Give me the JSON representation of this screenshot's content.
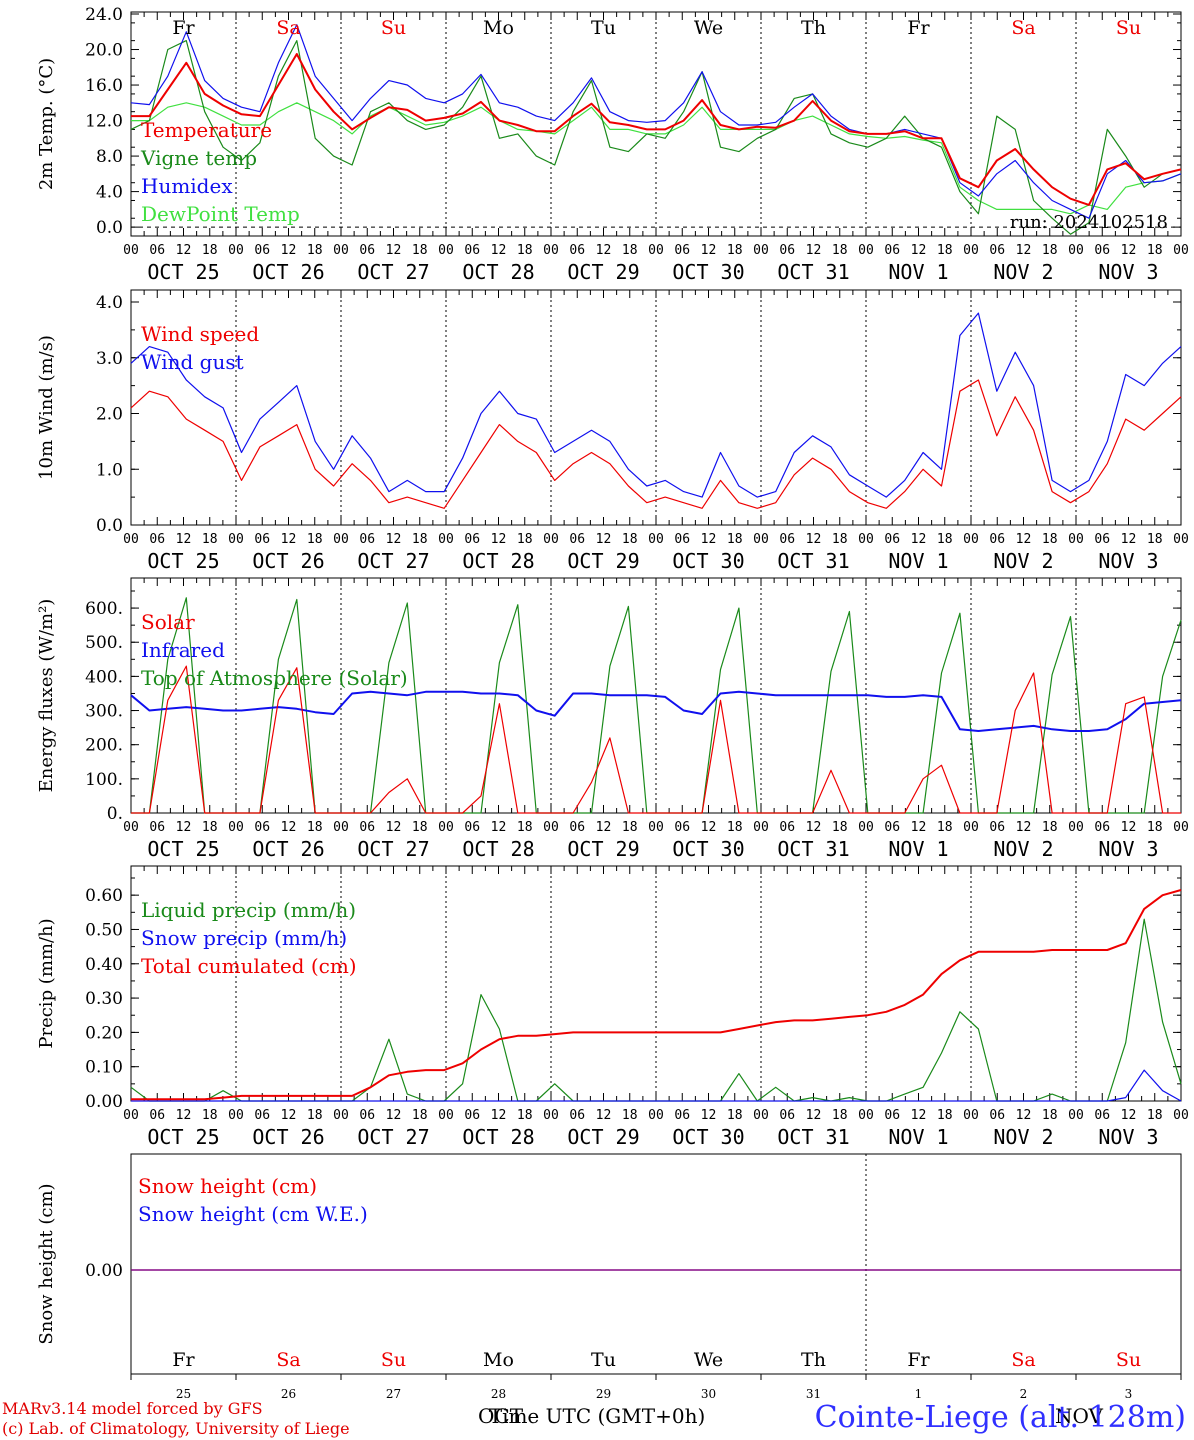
{
  "run_label": "run: 2024102518",
  "days": {
    "weekday": [
      "Fr",
      "Sa",
      "Su",
      "Mo",
      "Tu",
      "We",
      "Th",
      "Fr",
      "Sa",
      "Su"
    ],
    "weekend": [
      false,
      true,
      true,
      false,
      false,
      false,
      false,
      false,
      true,
      true
    ],
    "date": [
      "OCT 25",
      "OCT 26",
      "OCT 27",
      "OCT 28",
      "OCT 29",
      "OCT 30",
      "OCT 31",
      "NOV  1",
      "NOV  2",
      "NOV  3"
    ],
    "daynum": [
      "25",
      "26",
      "27",
      "28",
      "29",
      "30",
      "31",
      "1",
      "2",
      "3"
    ],
    "hour_ticks": [
      "00",
      "06",
      "12",
      "18"
    ]
  },
  "colors": {
    "red": "#ee0000",
    "green": "#1a8a1a",
    "blue": "#1010ee",
    "lightgreen": "#40e040",
    "purple": "#800080"
  },
  "chart_data": [
    {
      "type": "line",
      "ylabel": "2m Temp. (°C)",
      "ylim": [
        -1.0,
        24.0
      ],
      "yticks": [
        "24.0",
        "20.0",
        "16.0",
        "12.0",
        "8.0",
        "4.0",
        "0.0"
      ],
      "x_start": "OCT 25 00 UTC",
      "x_step_hours": 6,
      "series": [
        {
          "name": "Temperature",
          "color": "red",
          "values": [
            12.5,
            12.5,
            15.5,
            18.5,
            15.0,
            13.7,
            12.7,
            12.5,
            16.0,
            19.5,
            15.5,
            13.0,
            11.0,
            12.3,
            13.5,
            13.2,
            12.0,
            12.3,
            12.8,
            14.1,
            12.0,
            11.5,
            10.8,
            10.8,
            12.5,
            13.9,
            11.8,
            11.5,
            11.0,
            11.0,
            12.0,
            14.3,
            11.5,
            11.0,
            11.3,
            11.2,
            12.0,
            14.2,
            12.0,
            10.8,
            10.5,
            10.5,
            10.8,
            10.0,
            10.0,
            5.5,
            4.5,
            7.5,
            8.8,
            6.5,
            4.5,
            3.2,
            2.5,
            6.5,
            7.2,
            5.4,
            6.0,
            6.5
          ]
        },
        {
          "name": "Vigne temp",
          "color": "green",
          "values": [
            11.0,
            12.0,
            20.0,
            21.0,
            13.0,
            9.0,
            7.5,
            9.5,
            17.0,
            21.0,
            10.0,
            8.0,
            7.0,
            13.0,
            14.0,
            12.0,
            11.0,
            11.5,
            13.5,
            17.0,
            10.0,
            10.5,
            8.0,
            7.0,
            13.0,
            16.5,
            9.0,
            8.5,
            10.5,
            10.0,
            13.0,
            17.5,
            9.0,
            8.5,
            10.0,
            11.0,
            14.5,
            15.0,
            10.5,
            9.5,
            9.0,
            10.0,
            12.5,
            10.0,
            9.0,
            4.0,
            1.5,
            12.5,
            11.0,
            3.0,
            1.0,
            -0.8,
            0.5,
            11.0,
            8.0,
            4.5,
            6.0,
            6.5
          ]
        },
        {
          "name": "Humidex",
          "color": "blue",
          "values": [
            14.0,
            13.8,
            17.0,
            22.0,
            16.5,
            14.5,
            13.5,
            13.0,
            18.5,
            22.8,
            17.0,
            14.5,
            12.0,
            14.5,
            16.5,
            16.0,
            14.5,
            14.0,
            15.0,
            17.2,
            14.0,
            13.5,
            12.5,
            12.0,
            14.0,
            16.8,
            13.0,
            12.0,
            11.8,
            12.0,
            14.0,
            17.5,
            13.0,
            11.5,
            11.5,
            11.8,
            13.5,
            15.0,
            12.5,
            11.0,
            10.5,
            10.5,
            11.0,
            10.5,
            10.0,
            5.0,
            3.5,
            6.0,
            7.5,
            5.0,
            3.0,
            2.0,
            1.0,
            6.0,
            7.5,
            5.0,
            5.2,
            6.0
          ]
        },
        {
          "name": "DewPoint Temp",
          "color": "lightgreen",
          "values": [
            12.0,
            12.0,
            13.5,
            14.0,
            13.5,
            12.5,
            11.5,
            11.5,
            13.0,
            14.0,
            13.0,
            12.0,
            10.5,
            12.5,
            13.5,
            12.5,
            11.5,
            11.8,
            12.5,
            13.5,
            12.0,
            11.0,
            10.8,
            10.5,
            12.0,
            13.5,
            11.0,
            11.0,
            10.5,
            10.5,
            11.5,
            13.5,
            11.0,
            11.0,
            11.0,
            11.0,
            12.0,
            12.5,
            11.5,
            10.5,
            10.2,
            10.0,
            10.2,
            9.8,
            9.5,
            4.5,
            3.0,
            2.0,
            2.0,
            2.0,
            2.0,
            1.5,
            2.5,
            2.0,
            4.5,
            5.0,
            5.2,
            6.0
          ]
        }
      ]
    },
    {
      "type": "line",
      "ylabel": "10m Wind (m/s)",
      "ylim": [
        0.0,
        4.0
      ],
      "yticks": [
        "4.0",
        "3.0",
        "2.0",
        "1.0",
        "0.0"
      ],
      "x_start": "OCT 25 00 UTC",
      "x_step_hours": 6,
      "series": [
        {
          "name": "Wind speed",
          "color": "red",
          "values": [
            2.1,
            2.4,
            2.3,
            1.9,
            1.7,
            1.5,
            0.8,
            1.4,
            1.6,
            1.8,
            1.0,
            0.7,
            1.1,
            0.8,
            0.4,
            0.5,
            0.4,
            0.3,
            0.8,
            1.3,
            1.8,
            1.5,
            1.3,
            0.8,
            1.1,
            1.3,
            1.1,
            0.7,
            0.4,
            0.5,
            0.4,
            0.3,
            0.8,
            0.4,
            0.3,
            0.4,
            0.9,
            1.2,
            1.0,
            0.6,
            0.4,
            0.3,
            0.6,
            1.0,
            0.7,
            2.4,
            2.6,
            1.6,
            2.3,
            1.7,
            0.6,
            0.4,
            0.6,
            1.1,
            1.9,
            1.7,
            2.0,
            2.3
          ]
        },
        {
          "name": "Wind gust",
          "color": "blue",
          "values": [
            2.9,
            3.2,
            3.1,
            2.6,
            2.3,
            2.1,
            1.3,
            1.9,
            2.2,
            2.5,
            1.5,
            1.0,
            1.6,
            1.2,
            0.6,
            0.8,
            0.6,
            0.6,
            1.2,
            2.0,
            2.4,
            2.0,
            1.9,
            1.3,
            1.5,
            1.7,
            1.5,
            1.0,
            0.7,
            0.8,
            0.6,
            0.5,
            1.3,
            0.7,
            0.5,
            0.6,
            1.3,
            1.6,
            1.4,
            0.9,
            0.7,
            0.5,
            0.8,
            1.3,
            1.0,
            3.4,
            3.8,
            2.4,
            3.1,
            2.5,
            0.8,
            0.6,
            0.8,
            1.5,
            2.7,
            2.5,
            2.9,
            3.2
          ]
        }
      ]
    },
    {
      "type": "line",
      "ylabel": "Energy fluxes (W/m²)",
      "ylim": [
        0,
        650
      ],
      "yticks": [
        "600.",
        "500.",
        "400.",
        "300.",
        "200.",
        "100.",
        "0."
      ],
      "x_start": "OCT 25 00 UTC",
      "x_step_hours": 6,
      "series": [
        {
          "name": "Solar",
          "color": "red",
          "values": [
            0,
            0,
            330,
            430,
            0,
            0,
            0,
            0,
            330,
            425,
            0,
            0,
            0,
            0,
            60,
            100,
            0,
            0,
            0,
            50,
            320,
            0,
            0,
            0,
            0,
            90,
            220,
            0,
            0,
            0,
            0,
            0,
            330,
            0,
            0,
            0,
            0,
            0,
            125,
            0,
            0,
            0,
            0,
            100,
            140,
            0,
            0,
            0,
            300,
            410,
            0,
            0,
            0,
            0,
            320,
            340,
            0,
            0
          ]
        },
        {
          "name": "Infrared",
          "color": "blue",
          "values": [
            345,
            300,
            305,
            310,
            305,
            300,
            300,
            305,
            310,
            305,
            295,
            290,
            350,
            355,
            350,
            345,
            355,
            355,
            355,
            350,
            350,
            345,
            300,
            285,
            350,
            350,
            345,
            345,
            345,
            340,
            300,
            290,
            350,
            355,
            350,
            345,
            345,
            345,
            345,
            345,
            345,
            340,
            340,
            345,
            340,
            245,
            240,
            245,
            250,
            255,
            245,
            240,
            240,
            245,
            275,
            320,
            325,
            330
          ]
        },
        {
          "name": "Top of Atmosphere (Solar)",
          "color": "green",
          "values": [
            0,
            0,
            450,
            630,
            0,
            0,
            0,
            0,
            450,
            625,
            0,
            0,
            0,
            0,
            440,
            615,
            0,
            0,
            0,
            0,
            440,
            610,
            0,
            0,
            0,
            0,
            430,
            605,
            0,
            0,
            0,
            0,
            420,
            600,
            0,
            0,
            0,
            0,
            415,
            590,
            0,
            0,
            0,
            0,
            410,
            585,
            0,
            0,
            0,
            0,
            405,
            575,
            0,
            0,
            0,
            0,
            400,
            565
          ]
        }
      ]
    },
    {
      "type": "line",
      "ylabel": "Precip (mm/h)",
      "ylim": [
        0.0,
        0.65
      ],
      "yticks": [
        "0.60",
        "0.50",
        "0.40",
        "0.30",
        "0.20",
        "0.10",
        "0.00"
      ],
      "x_start": "OCT 25 00 UTC",
      "x_step_hours": 6,
      "series": [
        {
          "name": "Liquid precip (mm/h)",
          "color": "green",
          "values": [
            0.04,
            0.0,
            0.0,
            0.0,
            0.0,
            0.03,
            0.0,
            0.0,
            0.0,
            0.0,
            0.0,
            0.0,
            0.0,
            0.04,
            0.18,
            0.02,
            0.0,
            0.0,
            0.05,
            0.31,
            0.21,
            0.0,
            0.0,
            0.05,
            0.0,
            0.0,
            0.0,
            0.0,
            0.0,
            0.0,
            0.0,
            0.0,
            0.0,
            0.08,
            0.0,
            0.04,
            0.0,
            0.01,
            0.0,
            0.01,
            0.0,
            0.0,
            0.02,
            0.04,
            0.14,
            0.26,
            0.21,
            0.0,
            0.0,
            0.0,
            0.02,
            0.0,
            0.0,
            0.0,
            0.17,
            0.53,
            0.23,
            0.05
          ]
        },
        {
          "name": "Snow precip (mm/h)",
          "color": "blue",
          "values": [
            0,
            0,
            0,
            0,
            0,
            0,
            0,
            0,
            0,
            0,
            0,
            0,
            0,
            0,
            0,
            0,
            0,
            0,
            0,
            0,
            0,
            0,
            0,
            0,
            0,
            0,
            0,
            0,
            0,
            0,
            0,
            0,
            0,
            0,
            0,
            0,
            0,
            0,
            0,
            0,
            0,
            0,
            0,
            0,
            0,
            0,
            0,
            0,
            0,
            0,
            0,
            0,
            0,
            0,
            0.01,
            0.09,
            0.03,
            0
          ]
        },
        {
          "name": "Total cumulated (cm)",
          "color": "red",
          "values": [
            0.005,
            0.005,
            0.005,
            0.005,
            0.005,
            0.01,
            0.015,
            0.015,
            0.015,
            0.015,
            0.015,
            0.015,
            0.015,
            0.04,
            0.075,
            0.085,
            0.09,
            0.09,
            0.11,
            0.15,
            0.18,
            0.19,
            0.19,
            0.195,
            0.2,
            0.2,
            0.2,
            0.2,
            0.2,
            0.2,
            0.2,
            0.2,
            0.2,
            0.21,
            0.22,
            0.23,
            0.235,
            0.235,
            0.24,
            0.245,
            0.25,
            0.26,
            0.28,
            0.31,
            0.37,
            0.41,
            0.435,
            0.435,
            0.435,
            0.435,
            0.44,
            0.44,
            0.44,
            0.44,
            0.46,
            0.56,
            0.6,
            0.615
          ]
        }
      ]
    },
    {
      "type": "line",
      "ylabel": "Snow height (cm)",
      "ylim": [
        -1.0,
        1.0
      ],
      "yticks": [
        "0.00"
      ],
      "x_start": "OCT 25 00 UTC",
      "x_step_hours": 6,
      "series": [
        {
          "name": "Snow height (cm)",
          "color": "red",
          "values": [
            0,
            0
          ]
        },
        {
          "name": "Snow height (cm W.E.)",
          "color": "blue",
          "values": [
            0,
            0
          ]
        }
      ]
    }
  ],
  "footer": {
    "credit_line1": "MARv3.14 model forced by GFS",
    "credit_line2": "(c) Lab. of Climatology, University of Liege",
    "time_label": "Time UTC (GMT+0h)",
    "month_overlap_1": "OCT",
    "month_overlap_2": "NOV",
    "station": "Cointe-Liege (alt. 128m)"
  }
}
